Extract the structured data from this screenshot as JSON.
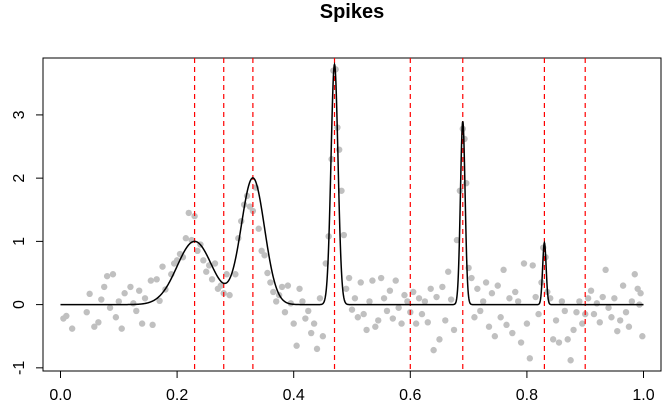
{
  "chart_data": {
    "type": "scatter",
    "title": "Spikes",
    "xlabel": "",
    "ylabel": "",
    "xlim": [
      -0.03,
      1.03
    ],
    "ylim": [
      -1.05,
      3.9
    ],
    "x_ticks": [
      0.0,
      0.2,
      0.4,
      0.6,
      0.8,
      1.0
    ],
    "x_tick_labels": [
      "0.0",
      "0.2",
      "0.4",
      "0.6",
      "0.8",
      "1.0"
    ],
    "y_ticks": [
      -1,
      0,
      1,
      2,
      3
    ],
    "y_tick_labels": [
      "-1",
      "0",
      "1",
      "2",
      "3"
    ],
    "grid": false,
    "colors": {
      "points": "#c0c0c0",
      "curve": "#000000",
      "breakpoints": "#ff0000"
    },
    "curve": {
      "name": "",
      "bumps": [
        {
          "center": 0.23,
          "height": 1.0,
          "width": 0.03
        },
        {
          "center": 0.33,
          "height": 2.0,
          "width": 0.02
        },
        {
          "center": 0.47,
          "height": 3.8,
          "width": 0.006
        },
        {
          "center": 0.69,
          "height": 2.9,
          "width": 0.004
        },
        {
          "center": 0.83,
          "height": 0.98,
          "width": 0.003
        }
      ]
    },
    "breakpoints": [
      0.23,
      0.28,
      0.33,
      0.47,
      0.6,
      0.69,
      0.83,
      0.9
    ],
    "points": [
      [
        0.005,
        -0.22
      ],
      [
        0.01,
        -0.18
      ],
      [
        0.02,
        -0.38
      ],
      [
        0.045,
        -0.12
      ],
      [
        0.05,
        0.17
      ],
      [
        0.058,
        -0.35
      ],
      [
        0.065,
        -0.28
      ],
      [
        0.07,
        0.08
      ],
      [
        0.075,
        0.28
      ],
      [
        0.08,
        0.45
      ],
      [
        0.085,
        -0.05
      ],
      [
        0.09,
        0.48
      ],
      [
        0.095,
        -0.2
      ],
      [
        0.1,
        0.05
      ],
      [
        0.105,
        -0.38
      ],
      [
        0.11,
        0.18
      ],
      [
        0.12,
        0.28
      ],
      [
        0.125,
        0.02
      ],
      [
        0.13,
        -0.1
      ],
      [
        0.135,
        0.22
      ],
      [
        0.14,
        -0.3
      ],
      [
        0.145,
        0.1
      ],
      [
        0.155,
        0.38
      ],
      [
        0.158,
        -0.32
      ],
      [
        0.165,
        0.4
      ],
      [
        0.17,
        0.06
      ],
      [
        0.175,
        0.6
      ],
      [
        0.18,
        0.24
      ],
      [
        0.19,
        0.48
      ],
      [
        0.195,
        0.65
      ],
      [
        0.2,
        0.7
      ],
      [
        0.205,
        0.8
      ],
      [
        0.21,
        0.75
      ],
      [
        0.215,
        1.05
      ],
      [
        0.22,
        1.45
      ],
      [
        0.225,
        1.02
      ],
      [
        0.23,
        1.4
      ],
      [
        0.235,
        0.85
      ],
      [
        0.24,
        0.95
      ],
      [
        0.245,
        0.7
      ],
      [
        0.25,
        0.52
      ],
      [
        0.255,
        0.62
      ],
      [
        0.26,
        0.4
      ],
      [
        0.265,
        0.65
      ],
      [
        0.27,
        0.25
      ],
      [
        0.275,
        0.3
      ],
      [
        0.28,
        0.18
      ],
      [
        0.285,
        0.48
      ],
      [
        0.29,
        0.15
      ],
      [
        0.3,
        0.48
      ],
      [
        0.305,
        1.05
      ],
      [
        0.31,
        1.32
      ],
      [
        0.315,
        1.58
      ],
      [
        0.32,
        1.72
      ],
      [
        0.325,
        1.55
      ],
      [
        0.33,
        1.48
      ],
      [
        0.335,
        1.85
      ],
      [
        0.34,
        1.2
      ],
      [
        0.345,
        0.85
      ],
      [
        0.35,
        0.78
      ],
      [
        0.355,
        0.5
      ],
      [
        0.36,
        0.35
      ],
      [
        0.365,
        0.2
      ],
      [
        0.37,
        0.05
      ],
      [
        0.375,
        0.15
      ],
      [
        0.38,
        0.28
      ],
      [
        0.385,
        -0.12
      ],
      [
        0.39,
        0.3
      ],
      [
        0.395,
        0.02
      ],
      [
        0.4,
        -0.3
      ],
      [
        0.405,
        -0.65
      ],
      [
        0.41,
        0.25
      ],
      [
        0.415,
        0.05
      ],
      [
        0.42,
        -0.22
      ],
      [
        0.425,
        -0.1
      ],
      [
        0.43,
        -0.45
      ],
      [
        0.435,
        -0.3
      ],
      [
        0.44,
        -0.7
      ],
      [
        0.445,
        0.1
      ],
      [
        0.45,
        -0.5
      ],
      [
        0.455,
        0.65
      ],
      [
        0.46,
        1.08
      ],
      [
        0.465,
        2.3
      ],
      [
        0.468,
        3.7
      ],
      [
        0.472,
        3.72
      ],
      [
        0.475,
        2.8
      ],
      [
        0.478,
        2.45
      ],
      [
        0.482,
        1.8
      ],
      [
        0.486,
        1.1
      ],
      [
        0.49,
        0.25
      ],
      [
        0.495,
        0.42
      ],
      [
        0.5,
        -0.08
      ],
      [
        0.505,
        0.1
      ],
      [
        0.51,
        -0.2
      ],
      [
        0.515,
        0.35
      ],
      [
        0.52,
        -0.15
      ],
      [
        0.525,
        -0.4
      ],
      [
        0.53,
        0.05
      ],
      [
        0.535,
        0.38
      ],
      [
        0.54,
        -0.35
      ],
      [
        0.545,
        -0.25
      ],
      [
        0.55,
        0.42
      ],
      [
        0.555,
        0.1
      ],
      [
        0.56,
        -0.1
      ],
      [
        0.565,
        0.22
      ],
      [
        0.57,
        -0.22
      ],
      [
        0.575,
        0.38
      ],
      [
        0.58,
        -0.05
      ],
      [
        0.585,
        -0.3
      ],
      [
        0.59,
        0.15
      ],
      [
        0.595,
        0.05
      ],
      [
        0.6,
        -0.12
      ],
      [
        0.605,
        0.2
      ],
      [
        0.61,
        -0.3
      ],
      [
        0.615,
        0.1
      ],
      [
        0.62,
        -0.15
      ],
      [
        0.625,
        0.05
      ],
      [
        0.63,
        -0.28
      ],
      [
        0.635,
        0.25
      ],
      [
        0.64,
        -0.72
      ],
      [
        0.645,
        0.12
      ],
      [
        0.65,
        -0.55
      ],
      [
        0.655,
        0.28
      ],
      [
        0.66,
        -0.25
      ],
      [
        0.665,
        0.52
      ],
      [
        0.67,
        0.08
      ],
      [
        0.675,
        -0.4
      ],
      [
        0.68,
        1.02
      ],
      [
        0.685,
        1.8
      ],
      [
        0.69,
        2.78
      ],
      [
        0.693,
        2.62
      ],
      [
        0.696,
        1.92
      ],
      [
        0.7,
        0.58
      ],
      [
        0.705,
        0.42
      ],
      [
        0.71,
        -0.2
      ],
      [
        0.715,
        0.25
      ],
      [
        0.72,
        -0.1
      ],
      [
        0.725,
        0.05
      ],
      [
        0.73,
        0.35
      ],
      [
        0.735,
        -0.35
      ],
      [
        0.74,
        0.18
      ],
      [
        0.745,
        -0.5
      ],
      [
        0.75,
        0.3
      ],
      [
        0.755,
        -0.2
      ],
      [
        0.76,
        0.55
      ],
      [
        0.765,
        -0.32
      ],
      [
        0.77,
        0.1
      ],
      [
        0.775,
        -0.45
      ],
      [
        0.78,
        0.2
      ],
      [
        0.785,
        0.05
      ],
      [
        0.79,
        -0.6
      ],
      [
        0.795,
        0.65
      ],
      [
        0.8,
        -0.3
      ],
      [
        0.805,
        -0.85
      ],
      [
        0.81,
        0.62
      ],
      [
        0.815,
        0.12
      ],
      [
        0.82,
        -0.15
      ],
      [
        0.825,
        0.35
      ],
      [
        0.828,
        0.9
      ],
      [
        0.832,
        0.75
      ],
      [
        0.835,
        0.2
      ],
      [
        0.84,
        0.1
      ],
      [
        0.845,
        -0.55
      ],
      [
        0.85,
        -0.25
      ],
      [
        0.855,
        -0.6
      ],
      [
        0.86,
        0.05
      ],
      [
        0.865,
        -0.1
      ],
      [
        0.87,
        -0.55
      ],
      [
        0.875,
        -0.88
      ],
      [
        0.88,
        -0.4
      ],
      [
        0.885,
        -0.12
      ],
      [
        0.89,
        0.05
      ],
      [
        0.895,
        -0.3
      ],
      [
        0.9,
        -0.15
      ],
      [
        0.905,
        0.1
      ],
      [
        0.91,
        0.22
      ],
      [
        0.915,
        -0.15
      ],
      [
        0.92,
        0.02
      ],
      [
        0.925,
        -0.28
      ],
      [
        0.93,
        0.12
      ],
      [
        0.935,
        0.55
      ],
      [
        0.94,
        -0.05
      ],
      [
        0.945,
        -0.2
      ],
      [
        0.95,
        0.1
      ],
      [
        0.955,
        -0.42
      ],
      [
        0.96,
        -0.25
      ],
      [
        0.965,
        0.3
      ],
      [
        0.97,
        -0.12
      ],
      [
        0.975,
        -0.35
      ],
      [
        0.98,
        0.05
      ],
      [
        0.985,
        0.48
      ],
      [
        0.99,
        0.25
      ],
      [
        0.993,
        0.0
      ],
      [
        0.995,
        0.18
      ],
      [
        0.998,
        -0.5
      ]
    ]
  }
}
